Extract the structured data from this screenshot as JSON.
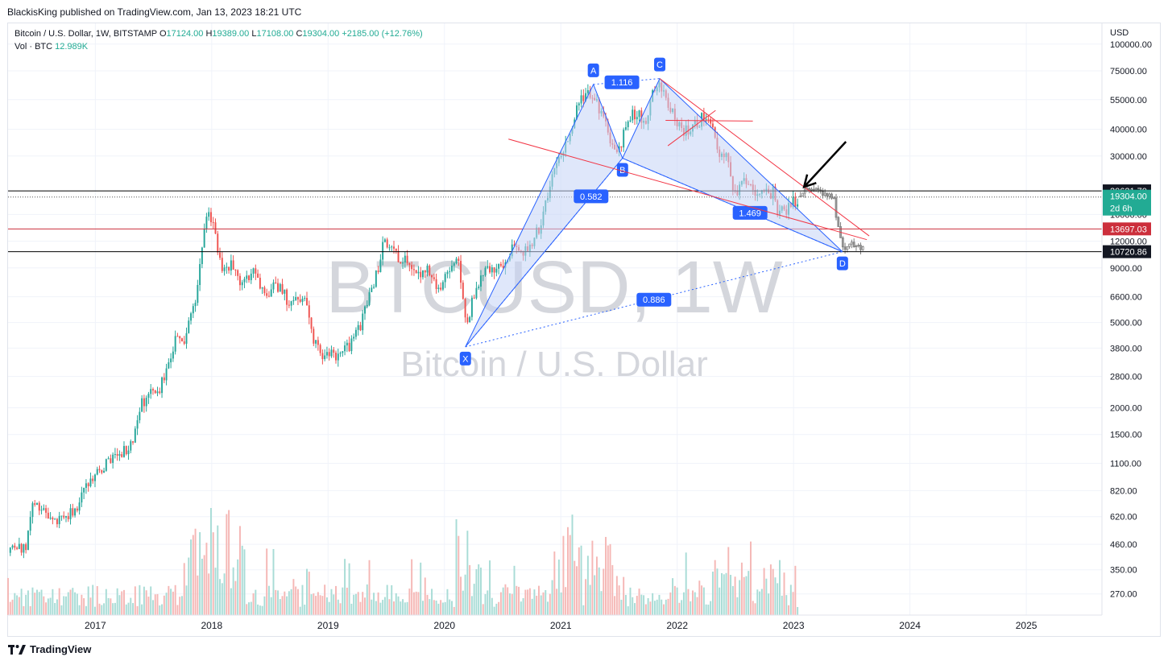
{
  "publisher_line": "BlackisKing published on TradingView.com, Jan 13, 2023 18:21 UTC",
  "legend": {
    "symbol": "Bitcoin / U.S. Dollar, 1W, BITSTAMP",
    "open_label": "O",
    "open": "17124.00",
    "high_label": "H",
    "high": "19389.00",
    "low_label": "L",
    "low": "17108.00",
    "close_label": "C",
    "close": "19304.00",
    "change": "+2185.00 (+12.76%)",
    "vol_label": "Vol · BTC",
    "vol": "12.989K"
  },
  "watermark": {
    "ticker": "BTCUSD, 1W",
    "name": "Bitcoin / U.S. Dollar"
  },
  "footer": {
    "brand": "TradingView",
    "logo": "tradingview-logo-icon"
  },
  "colors": {
    "up": "#26a69a",
    "down": "#ef5350",
    "pattern": "#2962ff",
    "pattern_fill": "#c5d3f5",
    "trend": "#f23645",
    "level_black": "#000000",
    "level_red": "#cc2f3c",
    "current_price_bg": "#22ab94",
    "label_dark": "#131722",
    "projected": "#9e9e9e"
  },
  "chart_data": {
    "type": "candlestick",
    "timeframe": "1W",
    "y_axis": {
      "unit_label": "USD",
      "scale": "log",
      "range": [
        215,
        125000
      ],
      "ticks": [
        100000,
        75000,
        55000,
        40000,
        30000,
        16000,
        12000,
        9000,
        6600,
        5000,
        3800,
        2800,
        2000,
        1500,
        1100,
        820,
        620,
        460,
        350,
        270
      ]
    },
    "x_axis": {
      "range": [
        2016.25,
        2025.65
      ],
      "ticks": [
        "2017",
        "2018",
        "2019",
        "2020",
        "2021",
        "2022",
        "2023",
        "2024",
        "2025"
      ]
    },
    "price_labels": [
      {
        "value": 20621.7,
        "text": "20621.70",
        "style": "dark"
      },
      {
        "value": 19304.0,
        "text": "19304.00",
        "sub": "2d 6h",
        "style": "current"
      },
      {
        "value": 13697.03,
        "text": "13697.03",
        "style": "red"
      },
      {
        "value": 10720.86,
        "text": "10720.86",
        "style": "dark"
      }
    ],
    "horizontal_levels": [
      {
        "value": 20621.7,
        "color": "black"
      },
      {
        "value": 13697.03,
        "color": "red"
      },
      {
        "value": 10720.86,
        "color": "black"
      }
    ],
    "price_anchors": [
      [
        2016.25,
        420
      ],
      [
        2016.4,
        440
      ],
      [
        2016.47,
        720
      ],
      [
        2016.6,
        600
      ],
      [
        2016.8,
        640
      ],
      [
        2016.95,
        900
      ],
      [
        2017.0,
        1000
      ],
      [
        2017.15,
        1150
      ],
      [
        2017.3,
        1300
      ],
      [
        2017.4,
        2100
      ],
      [
        2017.55,
        2500
      ],
      [
        2017.6,
        2800
      ],
      [
        2017.7,
        4300
      ],
      [
        2017.75,
        3800
      ],
      [
        2017.85,
        6000
      ],
      [
        2017.92,
        11000
      ],
      [
        2017.97,
        17500
      ],
      [
        2018.03,
        13000
      ],
      [
        2018.1,
        8500
      ],
      [
        2018.2,
        9500
      ],
      [
        2018.25,
        7000
      ],
      [
        2018.35,
        9200
      ],
      [
        2018.45,
        6700
      ],
      [
        2018.55,
        7700
      ],
      [
        2018.65,
        6400
      ],
      [
        2018.8,
        6400
      ],
      [
        2018.87,
        4000
      ],
      [
        2018.95,
        3600
      ],
      [
        2019.1,
        3500
      ],
      [
        2019.2,
        4000
      ],
      [
        2019.3,
        5200
      ],
      [
        2019.42,
        8700
      ],
      [
        2019.49,
        12500
      ],
      [
        2019.55,
        10500
      ],
      [
        2019.65,
        10000
      ],
      [
        2019.75,
        8200
      ],
      [
        2019.85,
        9200
      ],
      [
        2019.95,
        7200
      ],
      [
        2020.05,
        8500
      ],
      [
        2020.12,
        9800
      ],
      [
        2020.19,
        5000
      ],
      [
        2020.25,
        6500
      ],
      [
        2020.35,
        9200
      ],
      [
        2020.5,
        9200
      ],
      [
        2020.6,
        11500
      ],
      [
        2020.7,
        10600
      ],
      [
        2020.8,
        13300
      ],
      [
        2020.88,
        18500
      ],
      [
        2020.97,
        28500
      ],
      [
        2021.05,
        34000
      ],
      [
        2021.12,
        47000
      ],
      [
        2021.2,
        58000
      ],
      [
        2021.28,
        57000
      ],
      [
        2021.35,
        48000
      ],
      [
        2021.42,
        35000
      ],
      [
        2021.5,
        33000
      ],
      [
        2021.6,
        46000
      ],
      [
        2021.68,
        47000
      ],
      [
        2021.73,
        43000
      ],
      [
        2021.8,
        61000
      ],
      [
        2021.85,
        65000
      ],
      [
        2021.92,
        50000
      ],
      [
        2021.97,
        47000
      ],
      [
        2022.05,
        38000
      ],
      [
        2022.15,
        42000
      ],
      [
        2022.24,
        46500
      ],
      [
        2022.3,
        39000
      ],
      [
        2022.38,
        30000
      ],
      [
        2022.45,
        29000
      ],
      [
        2022.48,
        20000
      ],
      [
        2022.6,
        23500
      ],
      [
        2022.68,
        20000
      ],
      [
        2022.75,
        19500
      ],
      [
        2022.83,
        20500
      ],
      [
        2022.86,
        16500
      ],
      [
        2022.95,
        16800
      ],
      [
        2023.04,
        19304
      ]
    ],
    "projection_anchors": [
      [
        2023.04,
        19304
      ],
      [
        2023.12,
        21500
      ],
      [
        2023.2,
        20800
      ],
      [
        2023.28,
        19800
      ],
      [
        2023.35,
        18500
      ],
      [
        2023.38,
        14000
      ],
      [
        2023.42,
        11800
      ],
      [
        2023.45,
        10721
      ],
      [
        2023.5,
        11500
      ],
      [
        2023.55,
        11800
      ],
      [
        2023.6,
        11000
      ]
    ],
    "xabcd_pattern": {
      "points": [
        {
          "label": "X",
          "t": 2020.18,
          "price": 3850
        },
        {
          "label": "A",
          "t": 2021.28,
          "price": 64800
        },
        {
          "label": "B",
          "t": 2021.53,
          "price": 29300
        },
        {
          "label": "C",
          "t": 2021.85,
          "price": 69000
        },
        {
          "label": "D",
          "t": 2023.42,
          "price": 10720
        }
      ],
      "ratios": [
        {
          "text": "0.582",
          "between": "X-B"
        },
        {
          "text": "1.116",
          "between": "A-C"
        },
        {
          "text": "1.469",
          "between": "B-D"
        },
        {
          "text": "0.886",
          "between": "X-D"
        }
      ]
    },
    "trendlines": [
      {
        "from": [
          2021.85,
          69000
        ],
        "to": [
          2023.65,
          12700
        ]
      },
      {
        "from": [
          2020.55,
          36000
        ],
        "to": [
          2023.63,
          12200
        ]
      },
      {
        "from": [
          2021.9,
          44000
        ],
        "to": [
          2022.65,
          43700
        ]
      },
      {
        "from": [
          2021.92,
          33500
        ],
        "to": [
          2022.33,
          49000
        ]
      }
    ],
    "arrow": {
      "from": [
        2023.45,
        35000
      ],
      "to": [
        2023.09,
        21500
      ]
    }
  }
}
